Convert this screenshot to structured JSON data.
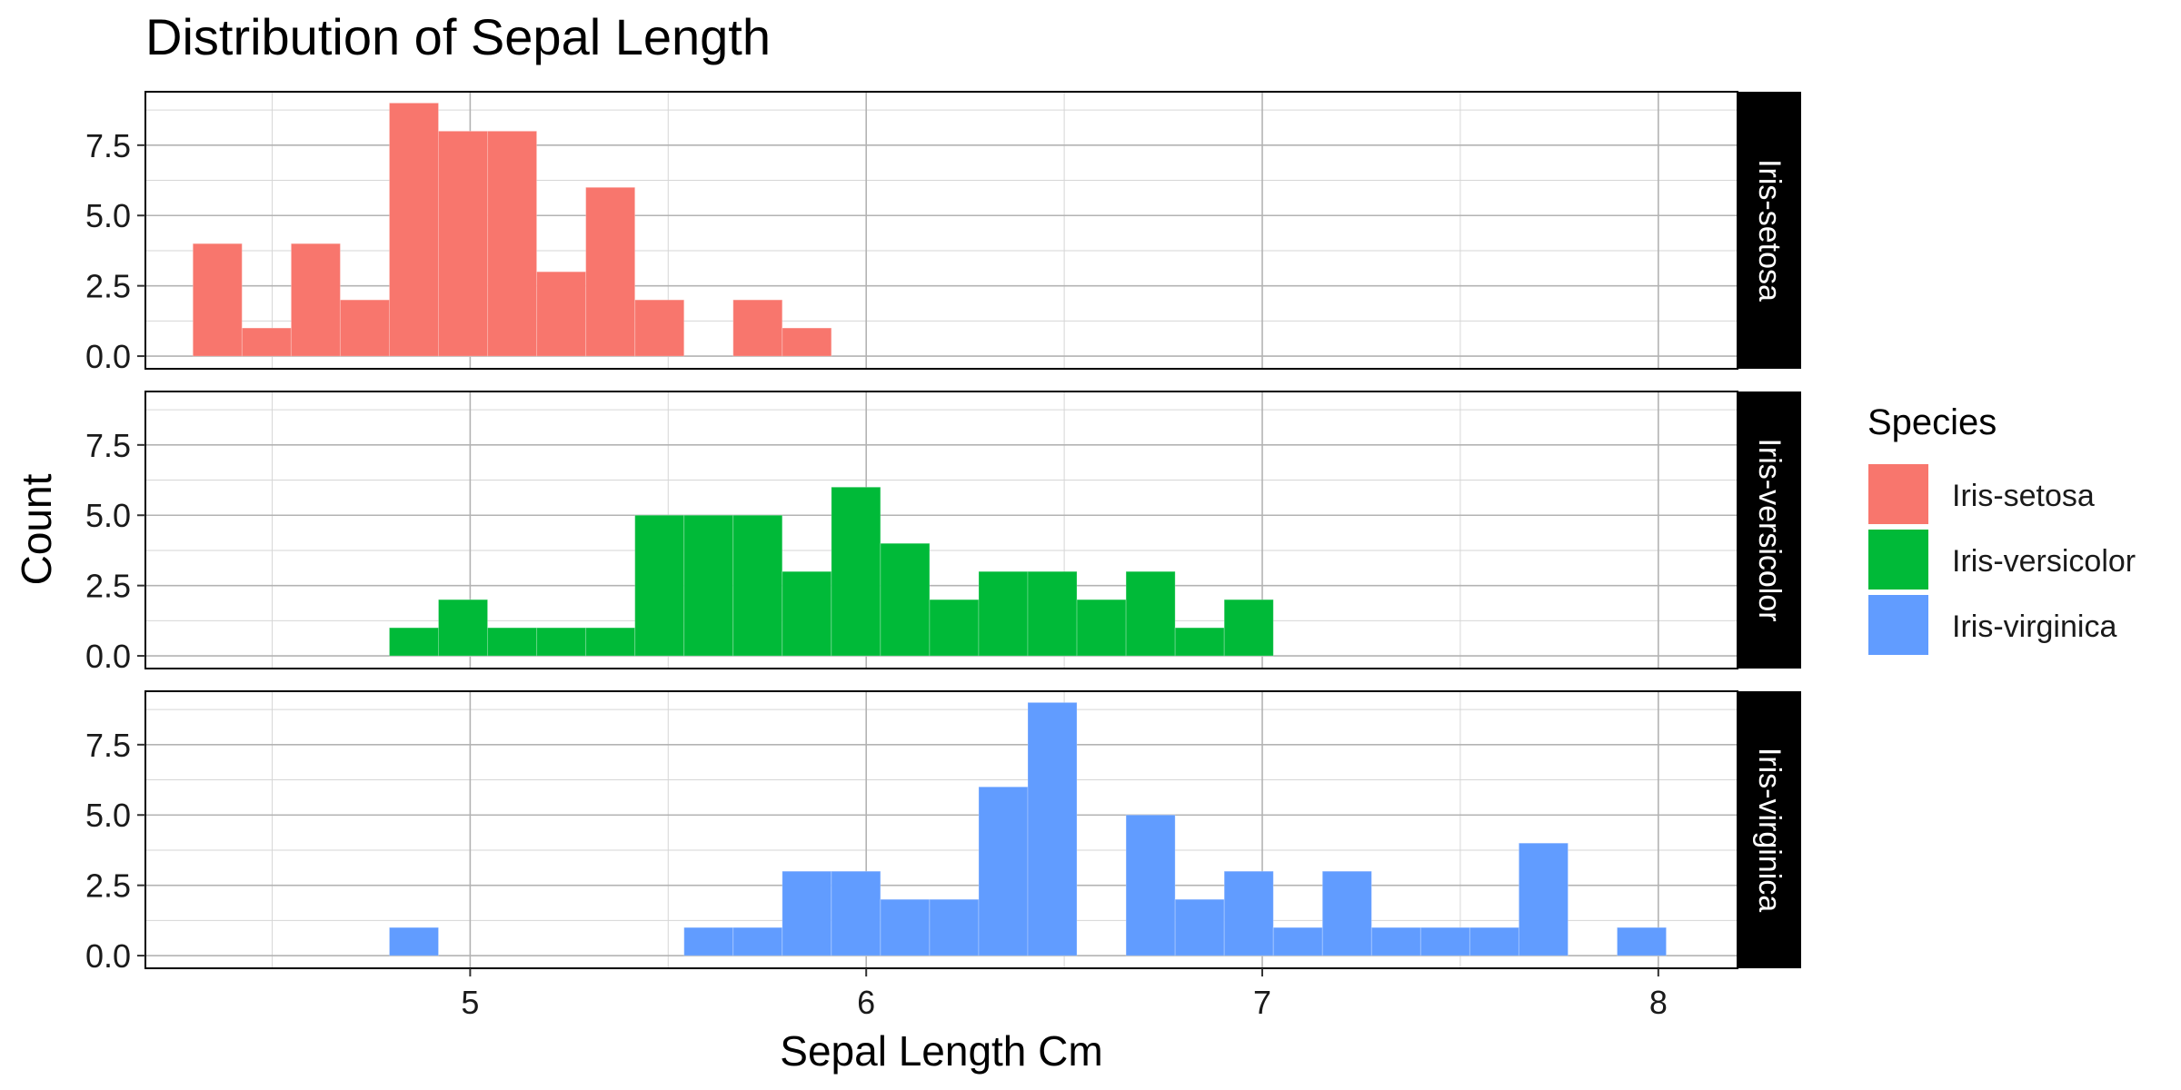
{
  "chart_data": {
    "type": "bar",
    "title": "Distribution of Sepal Length",
    "xlabel": "Sepal Length Cm",
    "ylabel": "Count",
    "xlim": [
      4.18,
      8.2
    ],
    "ylim": [
      0,
      9.4
    ],
    "x_ticks": [
      "5",
      "6",
      "7",
      "8"
    ],
    "y_ticks": [
      "0.0",
      "2.5",
      "5.0",
      "7.5"
    ],
    "grid": true,
    "legend": {
      "title": "Species",
      "position": "right"
    },
    "bin_width": 0.124,
    "bin_edges": [
      4.3,
      4.424,
      4.548,
      4.672,
      4.796,
      4.92,
      5.044,
      5.168,
      5.292,
      5.416,
      5.54,
      5.664,
      5.788,
      5.912,
      6.036,
      6.16,
      6.284,
      6.408,
      6.532,
      6.656,
      6.78,
      6.904,
      7.028,
      7.152,
      7.276,
      7.4,
      7.524,
      7.648,
      7.772,
      7.896,
      8.02
    ],
    "series": [
      {
        "name": "Iris-setosa",
        "color": "#F8766D",
        "values": [
          4,
          1,
          4,
          2,
          9,
          8,
          8,
          3,
          6,
          2,
          0,
          2,
          1,
          0,
          0,
          0,
          0,
          0,
          0,
          0,
          0,
          0,
          0,
          0,
          0,
          0,
          0,
          0,
          0,
          0
        ]
      },
      {
        "name": "Iris-versicolor",
        "color": "#00BA38",
        "values": [
          0,
          0,
          0,
          0,
          1,
          2,
          1,
          1,
          1,
          5,
          5,
          5,
          3,
          6,
          4,
          2,
          3,
          3,
          2,
          3,
          1,
          2,
          0,
          0,
          0,
          0,
          0,
          0,
          0,
          0
        ]
      },
      {
        "name": "Iris-virginica",
        "color": "#619CFF",
        "values": [
          0,
          0,
          0,
          0,
          1,
          0,
          0,
          0,
          0,
          0,
          1,
          1,
          3,
          3,
          2,
          2,
          6,
          9,
          0,
          5,
          2,
          3,
          1,
          3,
          1,
          1,
          1,
          4,
          0,
          1
        ]
      }
    ]
  }
}
